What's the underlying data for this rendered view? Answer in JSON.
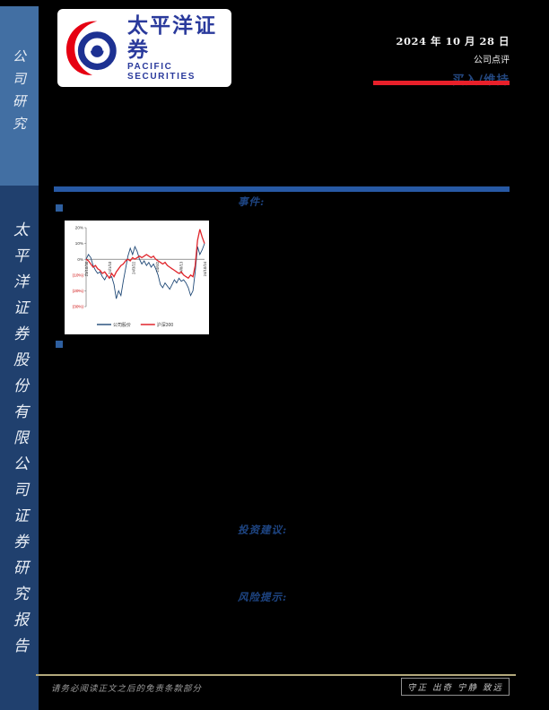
{
  "sidebar": {
    "top_label": "公司研究",
    "bottom_label": "太平洋证券股份有限公司证券研究报告"
  },
  "logo": {
    "cn": "太平洋证券",
    "en": "PACIFIC SECURITIES",
    "red": "#e60012",
    "blue": "#1d3192"
  },
  "header": {
    "date": "2024 年 10 月 28 日",
    "report_type": "公司点评",
    "rating": "买入/维持"
  },
  "sections": {
    "event_label": "事件:",
    "advice_label": "投资建议:",
    "risk_label": "风险提示:"
  },
  "footer": {
    "disclaimer": "请务必阅读正文之后的免责条款部分",
    "motto": "守正 出奇 宁静 致远"
  },
  "chart_data": {
    "type": "line",
    "title": "",
    "xlabel": "",
    "ylabel": "",
    "ylim": [
      -30,
      20
    ],
    "grid": false,
    "legend_position": "bottom",
    "yticks": [
      20,
      10,
      0,
      -10,
      -20,
      -30
    ],
    "ytick_labels": [
      "20%",
      "10%",
      "0%",
      "(10%)",
      "(20%)",
      "(30%)"
    ],
    "negative_tick_color": "#cc0000",
    "positive_tick_color": "#333333",
    "x_tick_labels": [
      "23/10/30",
      "24/1/10",
      "24/3/22",
      "24/6/2",
      "24/8/13",
      "24/10/24"
    ],
    "series": [
      {
        "name": "公司股价",
        "color": "#1f4876",
        "values": [
          0,
          3,
          1,
          -4,
          -7,
          -9,
          -8,
          -11,
          -13,
          -10,
          -12,
          -11,
          -16,
          -25,
          -20,
          -23,
          -14,
          -6,
          2,
          7,
          3,
          8,
          5,
          0,
          -3,
          -1,
          -4,
          -2,
          -5,
          -3,
          -6,
          -10,
          -16,
          -18,
          -15,
          -17,
          -19,
          -16,
          -13,
          -15,
          -12,
          -14,
          -13,
          -15,
          -18,
          -23,
          -20,
          -8,
          8,
          3,
          6,
          10
        ]
      },
      {
        "name": "沪深300",
        "color": "#e0252b",
        "values": [
          0,
          -1,
          -3,
          -5,
          -4,
          -6,
          -7,
          -9,
          -8,
          -10,
          -12,
          -9,
          -11,
          -8,
          -6,
          -4,
          -3,
          -1,
          0,
          -1,
          1,
          0,
          1,
          2,
          1,
          2,
          3,
          2,
          1,
          2,
          0,
          -1,
          -2,
          -3,
          -2,
          -4,
          -5,
          -6,
          -7,
          -8,
          -9,
          -8,
          -10,
          -11,
          -12,
          -10,
          -11,
          -4,
          12,
          19,
          14,
          10
        ]
      }
    ]
  }
}
